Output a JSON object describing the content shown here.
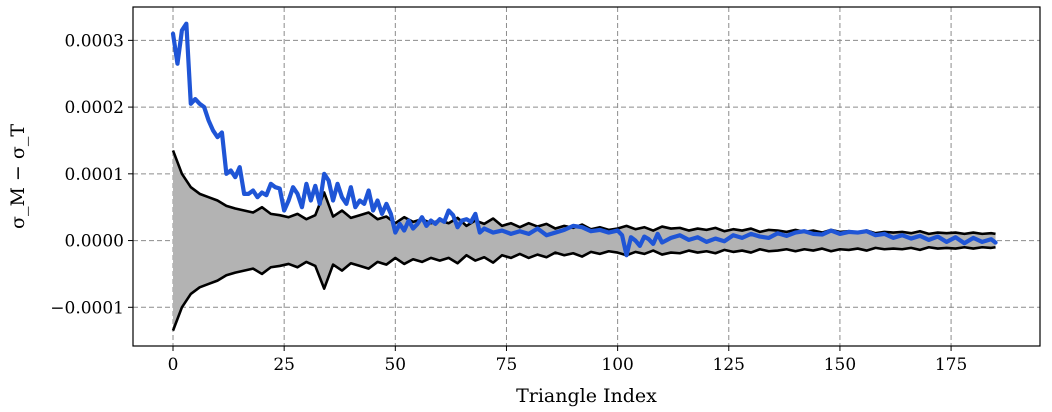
{
  "chart_data": {
    "type": "line",
    "title": "",
    "xlabel": "Triangle Index",
    "ylabel": "σ_M − σ_T",
    "xlim": [
      -9,
      195
    ],
    "ylim": [
      -0.000158,
      0.00035
    ],
    "grid": true,
    "x_ticks": [
      0,
      25,
      50,
      75,
      100,
      125,
      150,
      175
    ],
    "y_ticks": [
      -0.0001,
      0.0,
      0.0001,
      0.0002,
      0.0003
    ],
    "x_tick_labels": [
      "0",
      "25",
      "50",
      "75",
      "100",
      "125",
      "150",
      "175"
    ],
    "y_tick_labels": [
      "−0.0001",
      "0.0000",
      "0.0001",
      "0.0002",
      "0.0003"
    ],
    "colors": {
      "difference": "#1f55d6",
      "envelope_line": "#000000",
      "envelope_fill": "#b3b3b3",
      "grid": "#8c8c8c"
    },
    "series": [
      {
        "role": "difference",
        "x": [
          0,
          1,
          2,
          3,
          4,
          5,
          6,
          7,
          8,
          9,
          10,
          11,
          12,
          13,
          14,
          15,
          16,
          17,
          18,
          19,
          20,
          21,
          22,
          23,
          24,
          25,
          26,
          27,
          28,
          29,
          30,
          31,
          32,
          33,
          34,
          35,
          36,
          37,
          38,
          39,
          40,
          41,
          42,
          43,
          44,
          45,
          46,
          47,
          48,
          49,
          50,
          51,
          52,
          53,
          54,
          55,
          56,
          57,
          58,
          59,
          60,
          61,
          62,
          63,
          64,
          65,
          66,
          67,
          68,
          69,
          70,
          72,
          74,
          76,
          78,
          80,
          82,
          84,
          86,
          88,
          90,
          92,
          94,
          96,
          98,
          100,
          101,
          102,
          103,
          104,
          105,
          106,
          107,
          108,
          109,
          110,
          112,
          114,
          116,
          118,
          120,
          122,
          124,
          126,
          128,
          130,
          132,
          134,
          136,
          138,
          140,
          142,
          144,
          146,
          148,
          150,
          152,
          154,
          156,
          158,
          160,
          162,
          164,
          166,
          168,
          170,
          172,
          174,
          176,
          178,
          180,
          182,
          184,
          185
        ],
        "y": [
          0.00031,
          0.000265,
          0.000315,
          0.000325,
          0.000205,
          0.000212,
          0.000205,
          0.0002,
          0.00018,
          0.000165,
          0.000155,
          0.000162,
          0.0001,
          0.000105,
          9.5e-05,
          0.00011,
          7e-05,
          7e-05,
          7.5e-05,
          6.5e-05,
          7.2e-05,
          6.8e-05,
          8.5e-05,
          8e-05,
          7.8e-05,
          4.5e-05,
          6e-05,
          8e-05,
          7e-05,
          5e-05,
          8.5e-05,
          6e-05,
          8.2e-05,
          5.5e-05,
          0.0001,
          9e-05,
          6e-05,
          8.5e-05,
          6.5e-05,
          5.5e-05,
          8e-05,
          5e-05,
          6e-05,
          5.5e-05,
          7.5e-05,
          4.5e-05,
          6e-05,
          4e-05,
          5.5e-05,
          4e-05,
          1.2e-05,
          2.5e-05,
          1.5e-05,
          3e-05,
          1.8e-05,
          2.5e-05,
          3.5e-05,
          2.2e-05,
          3e-05,
          2.5e-05,
          3.2e-05,
          2.8e-05,
          4.5e-05,
          3.8e-05,
          2e-05,
          3e-05,
          3.2e-05,
          2.8e-05,
          4e-05,
          1.2e-05,
          1.8e-05,
          1.2e-05,
          1.5e-05,
          1e-05,
          1.4e-05,
          1e-05,
          1.8e-05,
          8e-06,
          1.2e-05,
          1.6e-05,
          2.2e-05,
          2e-05,
          1.4e-05,
          1.6e-05,
          1.2e-05,
          1.5e-05,
          8e-06,
          -2.2e-05,
          5e-06,
          0.0,
          -8e-06,
          6e-06,
          2e-06,
          -5e-06,
          1e-05,
          -3e-06,
          4e-06,
          8e-06,
          1e-06,
          5e-06,
          -2e-06,
          3e-06,
          -1e-06,
          8e-06,
          4e-06,
          1e-05,
          6e-06,
          4e-06,
          1.1e-05,
          7e-06,
          1.2e-05,
          1.4e-05,
          1e-05,
          9e-06,
          1.5e-05,
          1e-05,
          1.3e-05,
          1.2e-05,
          1.4e-05,
          8e-06,
          1e-05,
          4e-06,
          8e-06,
          3e-06,
          7e-06,
          1e-06,
          6e-06,
          -2e-06,
          5e-06,
          -4e-06,
          4e-06,
          -2e-06,
          2e-06,
          -3e-06
        ]
      },
      {
        "role": "envelope",
        "x": [
          0,
          2,
          4,
          6,
          8,
          10,
          12,
          14,
          16,
          18,
          20,
          22,
          24,
          26,
          28,
          30,
          32,
          34,
          36,
          38,
          40,
          42,
          44,
          46,
          48,
          50,
          52,
          54,
          56,
          58,
          60,
          62,
          64,
          66,
          68,
          70,
          72,
          74,
          76,
          78,
          80,
          82,
          84,
          86,
          88,
          90,
          92,
          94,
          96,
          98,
          100,
          102,
          104,
          106,
          108,
          110,
          112,
          114,
          116,
          118,
          120,
          122,
          124,
          126,
          128,
          130,
          132,
          134,
          136,
          138,
          140,
          142,
          144,
          146,
          148,
          150,
          152,
          154,
          156,
          158,
          160,
          162,
          164,
          166,
          168,
          170,
          172,
          174,
          176,
          178,
          180,
          182,
          184,
          185
        ],
        "y": [
          0.000135,
          0.0001,
          8e-05,
          7e-05,
          6.5e-05,
          6e-05,
          5.2e-05,
          4.8e-05,
          4.5e-05,
          4.2e-05,
          5e-05,
          4e-05,
          3.8e-05,
          3.5e-05,
          4e-05,
          3.2e-05,
          3.8e-05,
          7.2e-05,
          3.6e-05,
          4.5e-05,
          3.4e-05,
          3.8e-05,
          4.2e-05,
          3.2e-05,
          3.6e-05,
          2.6e-05,
          3.5e-05,
          2.8e-05,
          3.2e-05,
          2.6e-05,
          3e-05,
          2.6e-05,
          3.4e-05,
          2.2e-05,
          3e-05,
          2.5e-05,
          3.3e-05,
          2.2e-05,
          2.6e-05,
          2e-05,
          2.6e-05,
          2.1e-05,
          2.5e-05,
          1.8e-05,
          2.2e-05,
          1.9e-05,
          2.4e-05,
          1.7e-05,
          2e-05,
          1.6e-05,
          1.8e-05,
          2.2e-05,
          1.7e-05,
          2e-05,
          1.5e-05,
          2.1e-05,
          1.8e-05,
          1.9e-05,
          1.5e-05,
          1.8e-05,
          1.6e-05,
          1.9e-05,
          1.4e-05,
          1.7e-05,
          1.5e-05,
          1.8e-05,
          1.3e-05,
          1.6e-05,
          1.5e-05,
          1.3e-05,
          1.6e-05,
          1.3e-05,
          1.5e-05,
          1.2e-05,
          1.6e-05,
          1.3e-05,
          1.4e-05,
          1.2e-05,
          1.5e-05,
          1.1e-05,
          1.3e-05,
          1.2e-05,
          1.3e-05,
          1.1e-05,
          1.4e-05,
          1e-05,
          1.2e-05,
          1.1e-05,
          1.2e-05,
          1e-05,
          1.2e-05,
          1e-05,
          1.1e-05,
          1e-05
        ]
      }
    ]
  }
}
